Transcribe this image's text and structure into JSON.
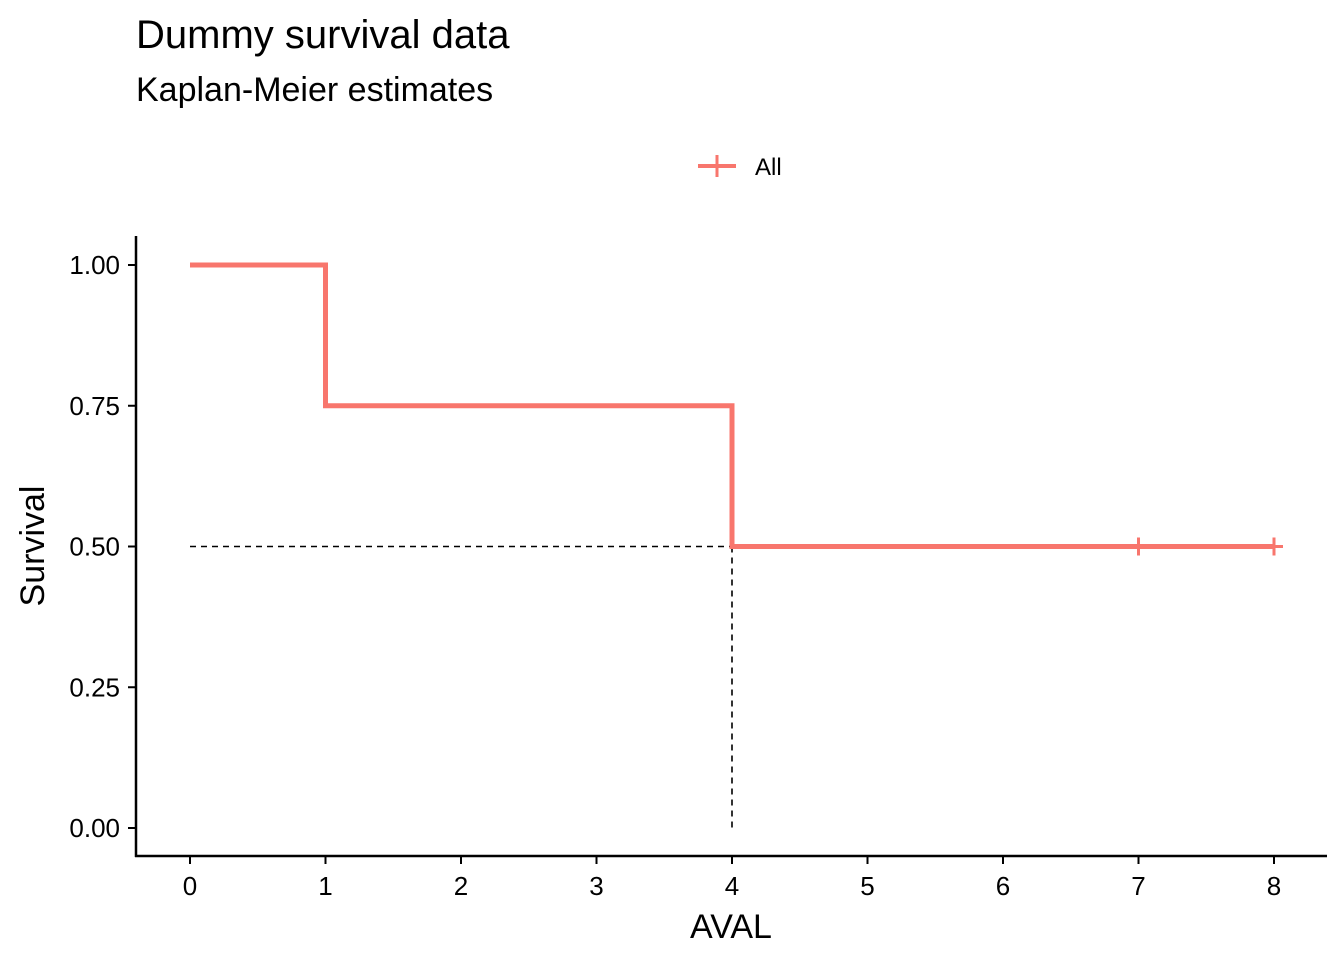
{
  "chart_data": {
    "type": "line",
    "title": "Dummy survival data",
    "subtitle": "Kaplan-Meier estimates",
    "xlabel": "AVAL",
    "ylabel": "Survival",
    "x_ticks": [
      "0",
      "1",
      "2",
      "3",
      "4",
      "5",
      "6",
      "7",
      "8"
    ],
    "y_ticks": [
      "0.00",
      "0.25",
      "0.50",
      "0.75",
      "1.00"
    ],
    "y_tick_values": [
      0,
      0.25,
      0.5,
      0.75,
      1.0
    ],
    "ylim": [
      0,
      1
    ],
    "grid": false,
    "legend_position": "top",
    "series": [
      {
        "name": "All",
        "color": "#F8766D",
        "step_points": [
          [
            0,
            1.0
          ],
          [
            1,
            1.0
          ],
          [
            1,
            0.75
          ],
          [
            4,
            0.75
          ],
          [
            4,
            0.5
          ],
          [
            8,
            0.5
          ]
        ],
        "censor_points": [
          [
            7,
            0.5
          ],
          [
            8,
            0.5
          ]
        ]
      }
    ],
    "median_reference": {
      "x": 4,
      "y": 0.5,
      "style": "dashed"
    }
  }
}
